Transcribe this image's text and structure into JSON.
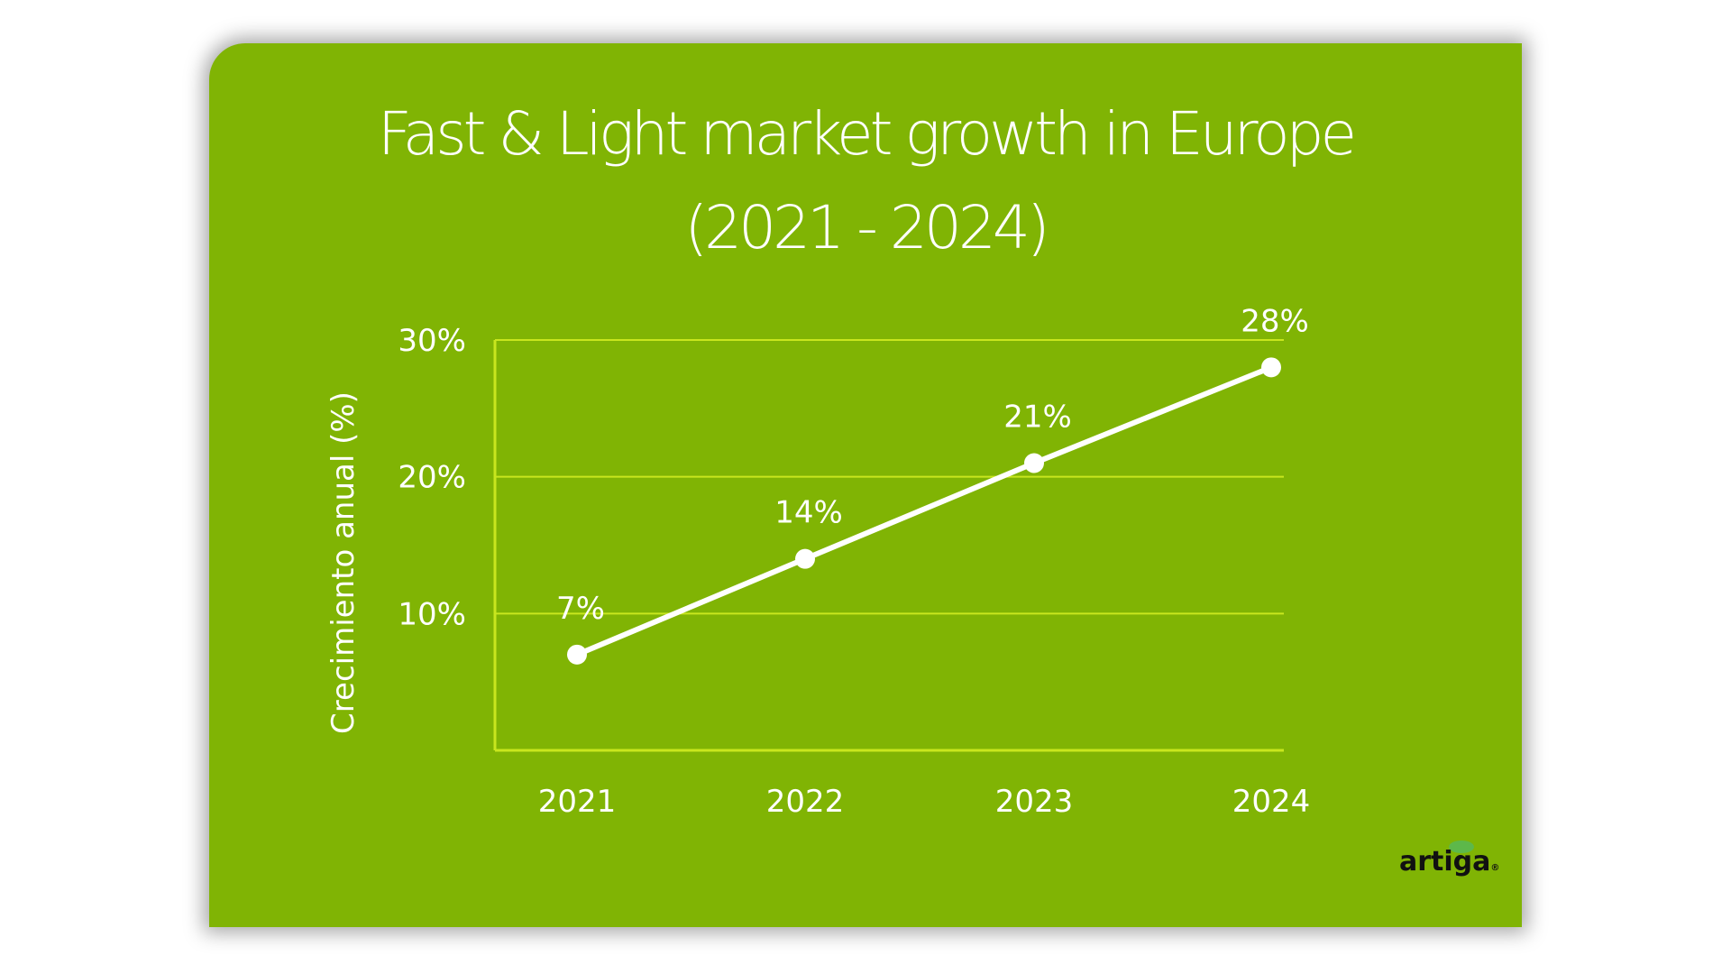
{
  "chart_data": {
    "type": "line",
    "title": "Fast & Light market growth in Europe",
    "subtitle": "(2021 - 2024)",
    "xlabel": "",
    "ylabel": "Crecimiento anual (%)",
    "categories": [
      "2021",
      "2022",
      "2023",
      "2024"
    ],
    "values": [
      7,
      14,
      21,
      28
    ],
    "data_labels": [
      "7%",
      "14%",
      "21%",
      "28%"
    ],
    "ylim": [
      0,
      30
    ],
    "yticks": [
      10,
      20,
      30
    ],
    "ytick_labels": [
      "10%",
      "20%",
      "30%"
    ],
    "grid": true,
    "legend": "none",
    "colors": {
      "background": "#80b404",
      "line": "#ffffff",
      "grid": "#c8e61e"
    }
  },
  "logo": {
    "text": "artiga",
    "mark": "®"
  }
}
